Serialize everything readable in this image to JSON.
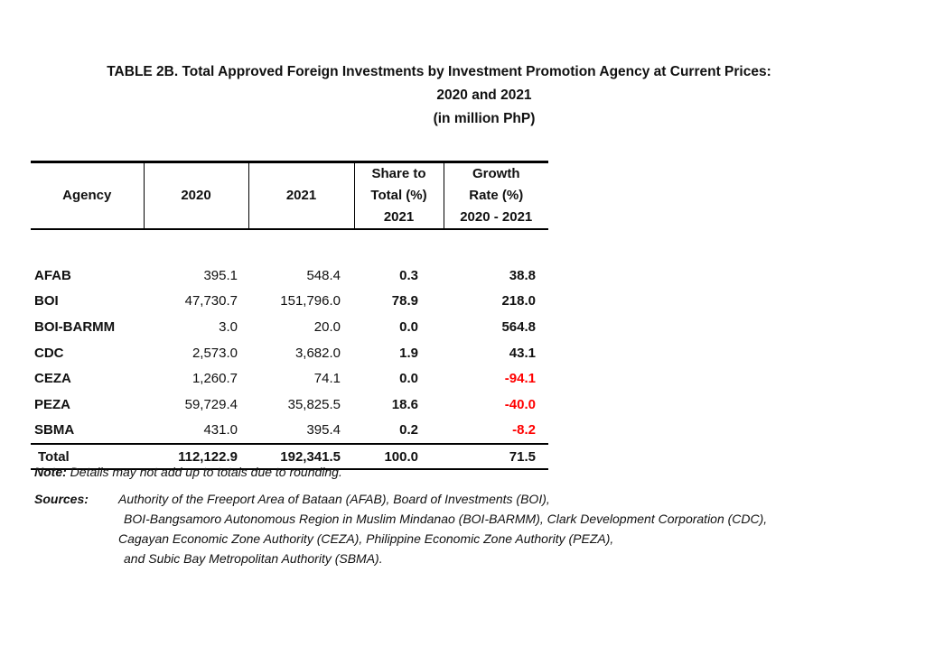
{
  "title": {
    "line1": "TABLE 2B. Total Approved Foreign Investments by Investment Promotion Agency at Current Prices:",
    "line2": "2020 and 2021",
    "line3": "(in million PhP)"
  },
  "table": {
    "headers": {
      "agency": "Agency",
      "y2020": "2020",
      "y2021": "2021",
      "share": [
        "Share to",
        "Total (%)",
        "2021"
      ],
      "growth": [
        "Growth",
        "Rate (%)",
        "2020 - 2021"
      ]
    },
    "rows": [
      {
        "agency": "AFAB",
        "v2020": "395.1",
        "v2021": "548.4",
        "share": "0.3",
        "growth": "38.8"
      },
      {
        "agency": "BOI",
        "v2020": "47,730.7",
        "v2021": "151,796.0",
        "share": "78.9",
        "growth": "218.0"
      },
      {
        "agency": "BOI-BARMM",
        "v2020": "3.0",
        "v2021": "20.0",
        "share": "0.0",
        "growth": "564.8"
      },
      {
        "agency": "CDC",
        "v2020": "2,573.0",
        "v2021": "3,682.0",
        "share": "1.9",
        "growth": "43.1"
      },
      {
        "agency": "CEZA",
        "v2020": "1,260.7",
        "v2021": "74.1",
        "share": "0.0",
        "growth": "-94.1"
      },
      {
        "agency": "PEZA",
        "v2020": "59,729.4",
        "v2021": "35,825.5",
        "share": "18.6",
        "growth": "-40.0"
      },
      {
        "agency": "SBMA",
        "v2020": "431.0",
        "v2021": "395.4",
        "share": "0.2",
        "growth": "-8.2"
      }
    ],
    "total": {
      "agency": "Total",
      "v2020": "112,122.9",
      "v2021": "192,341.5",
      "share": "100.0",
      "growth": "71.5"
    },
    "negative_color": "#ff0000"
  },
  "note": {
    "label": "Note:",
    "text": " Details may not add up to totals due to rounding."
  },
  "sources": {
    "label": "Sources:",
    "lines": [
      "Authority of the Freeport Area of Bataan (AFAB), Board of Investments (BOI),",
      "BOI-Bangsamoro Autonomous Region in Muslim Mindanao (BOI-BARMM), Clark Development Corporation (CDC),",
      "Cagayan Economic Zone Authority (CEZA), Philippine Economic Zone Authority (PEZA),",
      "and Subic Bay Metropolitan Authority (SBMA)."
    ]
  }
}
